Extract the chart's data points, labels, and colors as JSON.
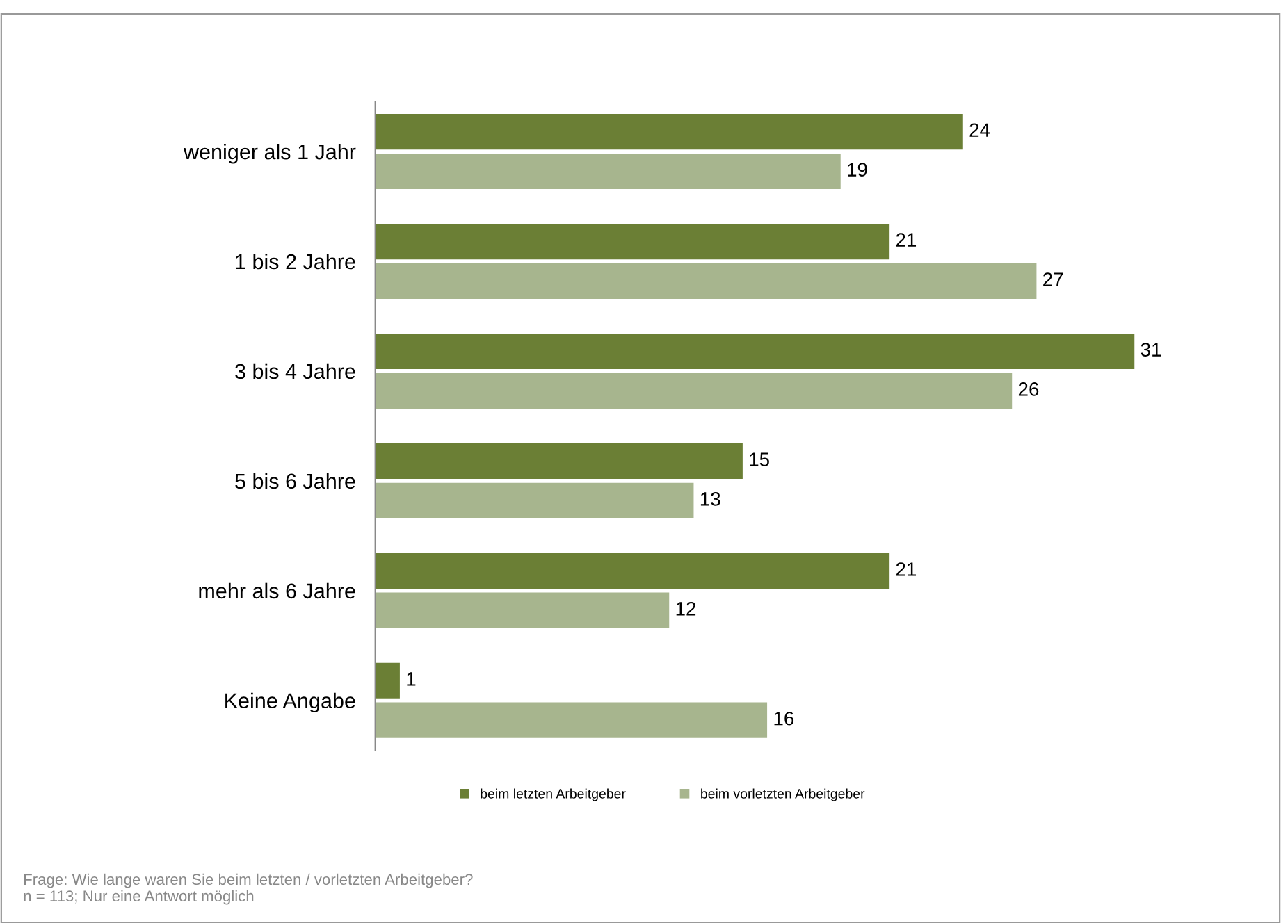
{
  "chart_data": {
    "type": "bar",
    "orientation": "horizontal",
    "categories": [
      "weniger als 1 Jahr",
      "1 bis 2 Jahre",
      "3 bis 4 Jahre",
      "5 bis 6 Jahre",
      "mehr als 6 Jahre",
      "Keine Angabe"
    ],
    "series": [
      {
        "name": "beim letzten Arbeitgeber",
        "color": "#6b7f35",
        "values": [
          24,
          21,
          31,
          15,
          21,
          1
        ]
      },
      {
        "name": "beim vorletzten Arbeitgeber",
        "color": "#a7b58e",
        "values": [
          19,
          27,
          26,
          13,
          12,
          16
        ]
      }
    ],
    "data_labels": true,
    "legend": "bottom",
    "grid": false,
    "tick_labels": "y",
    "annotations": [
      "Frage: Wie lange waren Sie beim letzten / vorletzten Arbeitgeber?\nn = 113; Nur eine Antwort möglich"
    ]
  }
}
